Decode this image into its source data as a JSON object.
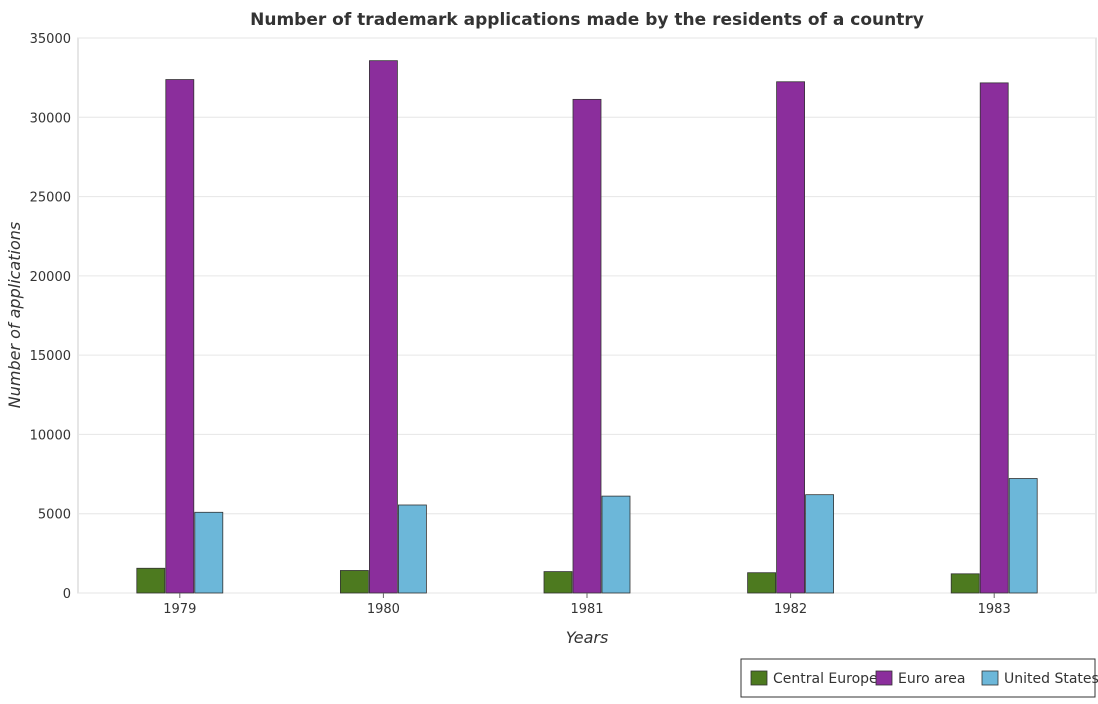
{
  "chart_data": {
    "type": "bar",
    "title": "Number of trademark applications made by the residents of a country",
    "xlabel": "Years",
    "ylabel": "Number of applications",
    "categories": [
      "1979",
      "1980",
      "1981",
      "1982",
      "1983"
    ],
    "series": [
      {
        "name": "Central Europe",
        "color": "#4d7a1f",
        "values": [
          1560,
          1420,
          1350,
          1280,
          1210
        ]
      },
      {
        "name": "Euro area",
        "color": "#8b2e9c",
        "values": [
          32380,
          33570,
          31130,
          32240,
          32170
        ]
      },
      {
        "name": "United States",
        "color": "#6cb7d9",
        "values": [
          5090,
          5550,
          6110,
          6200,
          7220
        ]
      }
    ],
    "ylim": [
      0,
      35000
    ],
    "yticks": [
      0,
      5000,
      10000,
      15000,
      20000,
      25000,
      30000,
      35000
    ],
    "grid": true,
    "legend_position": "bottom-right"
  }
}
